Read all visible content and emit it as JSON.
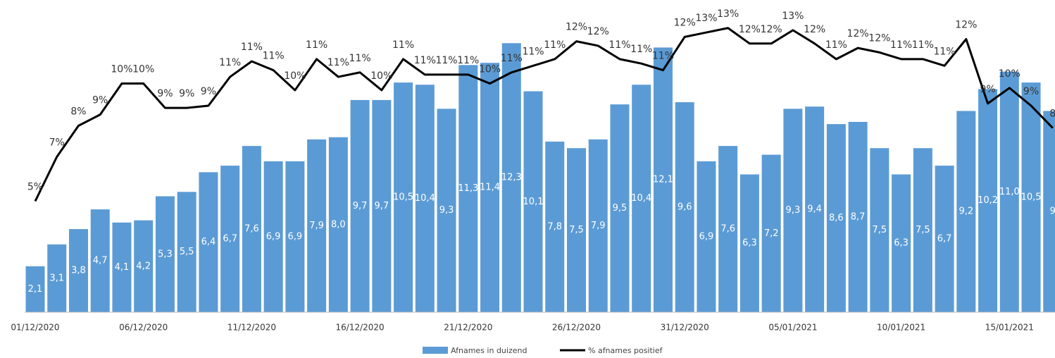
{
  "chart_data": {
    "type": "bar-line",
    "categories": [
      "01/12/2020",
      null,
      null,
      null,
      null,
      "06/12/2020",
      null,
      null,
      null,
      null,
      "11/12/2020",
      null,
      null,
      null,
      null,
      "16/12/2020",
      null,
      null,
      null,
      null,
      "21/12/2020",
      null,
      null,
      null,
      null,
      "26/12/2020",
      null,
      null,
      null,
      null,
      "31/12/2020",
      null,
      null,
      null,
      null,
      "05/01/2021",
      null,
      null,
      null,
      null,
      "10/01/2021",
      null,
      null,
      null,
      null,
      "15/01/2021",
      null,
      null
    ],
    "ylim": [
      0,
      13.5
    ],
    "y2lim": [
      0,
      13.3
    ],
    "series": [
      {
        "name": "Afnames in duizend",
        "type": "bar",
        "color": "#5b9bd5",
        "values": [
          2.1,
          3.1,
          3.8,
          4.7,
          4.1,
          4.2,
          5.3,
          5.5,
          6.4,
          6.7,
          7.6,
          6.9,
          6.9,
          7.9,
          8.0,
          9.7,
          9.7,
          10.5,
          10.4,
          9.3,
          11.3,
          11.4,
          12.3,
          10.1,
          7.8,
          7.5,
          7.9,
          9.5,
          10.4,
          12.1,
          9.6,
          6.9,
          7.6,
          6.3,
          7.2,
          9.3,
          9.4,
          8.6,
          8.7,
          7.5,
          6.3,
          7.5,
          6.7,
          9.2,
          10.2,
          11.0,
          10.5,
          9.2
        ],
        "value_labels": [
          "2,1",
          "3,1",
          "3,8",
          "4,7",
          "4,1",
          "4,2",
          "5,3",
          "5,5",
          "6,4",
          "6,7",
          "7,6",
          "6,9",
          "6,9",
          "7,9",
          "8,0",
          "9,7",
          "9,7",
          "10,5",
          "10,4",
          "9,3",
          "11,3",
          "11,4",
          "12,3",
          "10,1",
          "7,8",
          "7,5",
          "7,9",
          "9,5",
          "10,4",
          "12,1",
          "9,6",
          "6,9",
          "7,6",
          "6,3",
          "7,2",
          "9,3",
          "9,4",
          "8,6",
          "8,7",
          "7,5",
          "6,3",
          "7,5",
          "6,7",
          "9,2",
          "10,2",
          "11,0",
          "10,5",
          "9"
        ]
      },
      {
        "name": "% afnames positief",
        "type": "line",
        "color": "#000000",
        "axis": "y2",
        "values": [
          5.0,
          7.0,
          8.4,
          8.9,
          10.3,
          10.3,
          9.2,
          9.2,
          9.3,
          10.6,
          11.3,
          10.9,
          10.0,
          11.4,
          10.6,
          10.8,
          10.0,
          11.4,
          10.7,
          10.7,
          10.7,
          10.3,
          10.8,
          11.1,
          11.4,
          12.2,
          12.0,
          11.4,
          11.2,
          10.9,
          12.4,
          12.6,
          12.8,
          12.1,
          12.1,
          12.7,
          12.1,
          11.4,
          11.9,
          11.7,
          11.4,
          11.4,
          11.1,
          12.3,
          9.4,
          10.1,
          9.3,
          8.3
        ],
        "value_labels": [
          "5%",
          "7%",
          "8%",
          "9%",
          "10%",
          "10%",
          "9%",
          "9%",
          "9%",
          "11%",
          "11%",
          "11%",
          "10%",
          "11%",
          "11%",
          "11%",
          "10%",
          "11%",
          "11%",
          "11%",
          "11%",
          "10%",
          "11%",
          "11%",
          "11%",
          "12%",
          "12%",
          "11%",
          "11%",
          "11%",
          "12%",
          "13%",
          "13%",
          "12%",
          "12%",
          "13%",
          "12%",
          "11%",
          "12%",
          "12%",
          "11%",
          "11%",
          "11%",
          "12%",
          "9%",
          "10%",
          "9%",
          "8"
        ]
      }
    ],
    "legend": "bottom"
  }
}
